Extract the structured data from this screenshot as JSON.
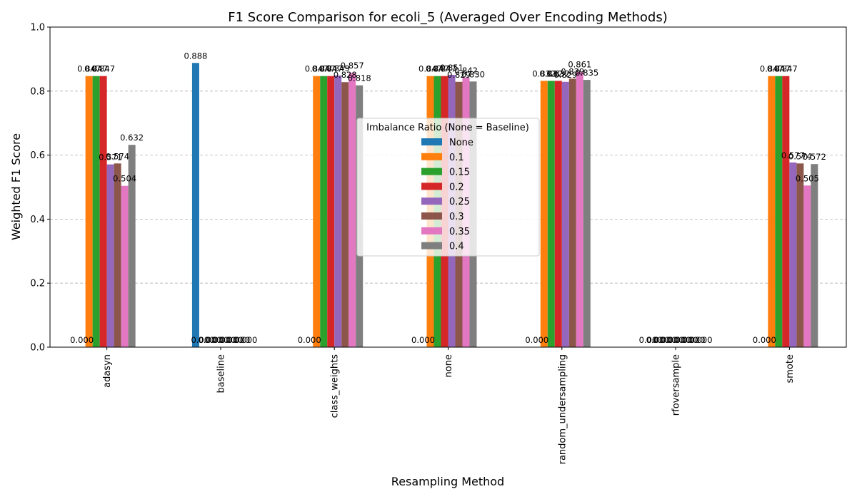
{
  "chart_data": {
    "type": "bar",
    "title": "F1 Score Comparison for ecoli_5 (Averaged Over Encoding Methods)",
    "xlabel": "Resampling Method",
    "ylabel": "Weighted F1 Score",
    "ylim": [
      0,
      1.0
    ],
    "yticks": [
      "0.0",
      "0.2",
      "0.4",
      "0.6",
      "0.8",
      "1.0"
    ],
    "grid": "y-dashed",
    "legend_title": "Imbalance Ratio (None = Baseline)",
    "legend_placement": "center",
    "categories": [
      "adasyn",
      "baseline",
      "class_weights",
      "none",
      "random_undersampling",
      "rfoversample",
      "smote"
    ],
    "series": [
      {
        "name": "None",
        "color": "#1f77b4",
        "values": [
          0.0,
          0.888,
          0.0,
          0.0,
          0.0,
          0.0,
          0.0
        ],
        "labels": [
          "0.000",
          "0.888",
          "0.000",
          "0.000",
          "0.000",
          "0.000",
          "0.000"
        ]
      },
      {
        "name": "0.1",
        "color": "#ff7f0e",
        "values": [
          0.847,
          0.0,
          0.847,
          0.847,
          0.832,
          0.0,
          0.847
        ],
        "labels": [
          "0.847",
          "0.000",
          "0.847",
          "0.847",
          "0.832",
          "0.000",
          "0.847"
        ]
      },
      {
        "name": "0.15",
        "color": "#2ca02c",
        "values": [
          0.847,
          0.0,
          0.847,
          0.847,
          0.832,
          0.0,
          0.847
        ],
        "labels": [
          "0.847",
          "0.000",
          "0.847",
          "0.847",
          "0.832",
          "0.000",
          "0.847"
        ]
      },
      {
        "name": "0.2",
        "color": "#d62728",
        "values": [
          0.847,
          0.0,
          0.847,
          0.847,
          0.832,
          0.0,
          0.847
        ],
        "labels": [
          "0.847",
          "0.000",
          "0.847",
          "0.847",
          "0.832",
          "0.000",
          "0.847"
        ]
      },
      {
        "name": "0.25",
        "color": "#9467bd",
        "values": [
          0.571,
          0.0,
          0.849,
          0.851,
          0.829,
          0.0,
          0.577
        ],
        "labels": [
          "0.571",
          "0.000",
          "0.849",
          "0.851",
          "0.829",
          "0.000",
          "0.577"
        ]
      },
      {
        "name": "0.3",
        "color": "#8c564b",
        "values": [
          0.574,
          0.0,
          0.828,
          0.829,
          0.839,
          0.0,
          0.574
        ],
        "labels": [
          "0.574",
          "0.000",
          "0.828",
          "0.829",
          "0.839",
          "0.000",
          "0.574"
        ]
      },
      {
        "name": "0.35",
        "color": "#e377c2",
        "values": [
          0.504,
          0.0,
          0.857,
          0.842,
          0.861,
          0.0,
          0.505
        ],
        "labels": [
          "0.504",
          "0.000",
          "0.857",
          "0.842",
          "0.861",
          "0.000",
          "0.505"
        ]
      },
      {
        "name": "0.4",
        "color": "#7f7f7f",
        "values": [
          0.632,
          0.0,
          0.818,
          0.83,
          0.835,
          0.0,
          0.572
        ],
        "labels": [
          "0.632",
          "0.000",
          "0.818",
          "0.830",
          "0.835",
          "0.000",
          "0.572"
        ]
      }
    ]
  }
}
